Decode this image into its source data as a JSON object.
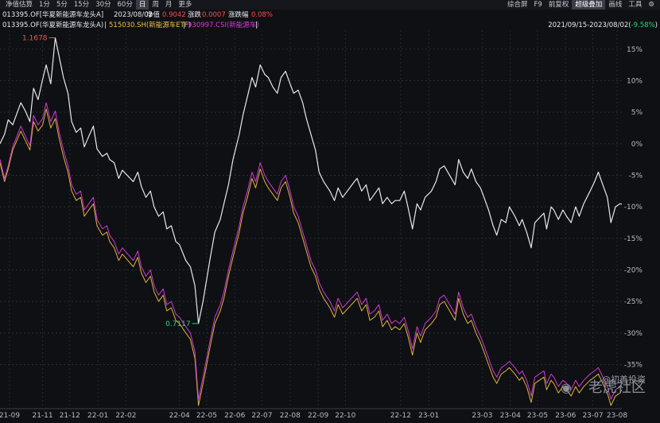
{
  "toolbar": {
    "tabs": [
      "净值估算",
      "1分",
      "5分",
      "15分",
      "30分",
      "60分",
      "日",
      "周",
      "月",
      "更多"
    ],
    "active_tab": "日",
    "right_items": [
      "综合屏",
      "F9",
      "前复权",
      "超级叠加",
      "画线",
      "工具"
    ],
    "active_right": "超级叠加",
    "settings_icon": "gear-icon"
  },
  "info": {
    "fund": "013395.OF[华夏新能源车龙头A]",
    "date": "2023/08/02",
    "nav_label": "净值",
    "nav_value": "0.9042",
    "chg_label": "涨跌",
    "chg_value": "0.0007",
    "pct_label": "涨跌幅",
    "pct_value": "0.08%"
  },
  "legend": {
    "s1": "013395.OF(华夏新能源车龙头A)",
    "sep1": "|",
    "s2": "515030.SH(新能源车ETF)",
    "sep2": "|",
    "s3": "930997.CSI(新能源车)",
    "sep3": "|",
    "range": "2021/09/15-2023/08/02(",
    "range_value": "-9.58%",
    "range_end": ")"
  },
  "colors": {
    "fund": "#e6e8ec",
    "etf": "#e0b43a",
    "index": "#d23ad2",
    "up": "#ff4d4f",
    "down": "#28d17c"
  },
  "watermark": {
    "top": "@初善投资",
    "bottom": "老虎社区"
  },
  "chart_data": {
    "type": "line",
    "x": [
      "21-09-15",
      "21-09-20",
      "21-09-24",
      "21-09-29",
      "21-10-08",
      "21-10-13",
      "21-10-18",
      "21-10-22",
      "21-10-27",
      "21-11-01",
      "21-11-05",
      "21-11-10",
      "21-11-15",
      "21-11-19",
      "21-11-24",
      "21-11-29",
      "21-12-03",
      "21-12-08",
      "21-12-13",
      "21-12-17",
      "21-12-22",
      "21-12-27",
      "21-12-31",
      "22-01-06",
      "22-01-11",
      "22-01-14",
      "22-01-19",
      "22-01-24",
      "22-01-28",
      "22-02-09",
      "22-02-14",
      "22-02-18",
      "22-02-23",
      "22-02-28",
      "22-03-04",
      "22-03-09",
      "22-03-14",
      "22-03-18",
      "22-03-23",
      "22-03-28",
      "22-04-01",
      "22-04-08",
      "22-04-13",
      "22-04-18",
      "22-04-22",
      "22-04-27",
      "22-05-05",
      "22-05-10",
      "22-05-16",
      "22-05-20",
      "22-05-25",
      "22-05-30",
      "22-06-06",
      "22-06-10",
      "22-06-15",
      "22-06-20",
      "22-06-24",
      "22-06-29",
      "22-07-04",
      "22-07-08",
      "22-07-13",
      "22-07-18",
      "22-07-22",
      "22-07-27",
      "22-08-01",
      "22-08-05",
      "22-08-10",
      "22-08-15",
      "22-08-19",
      "22-08-24",
      "22-08-29",
      "22-09-02",
      "22-09-07",
      "22-09-14",
      "22-09-19",
      "22-09-23",
      "22-09-28",
      "22-10-11",
      "22-10-14",
      "22-10-19",
      "22-10-24",
      "22-10-28",
      "22-11-02",
      "22-11-07",
      "22-11-11",
      "22-11-16",
      "22-11-21",
      "22-11-25",
      "22-11-30",
      "22-12-05",
      "22-12-09",
      "22-12-14",
      "22-12-19",
      "22-12-23",
      "22-12-28",
      "23-01-04",
      "23-01-09",
      "23-01-13",
      "23-01-18",
      "23-01-30",
      "23-02-03",
      "23-02-08",
      "23-02-13",
      "23-02-17",
      "23-02-22",
      "23-02-27",
      "23-03-03",
      "23-03-08",
      "23-03-13",
      "23-03-17",
      "23-03-22",
      "23-03-27",
      "23-03-31",
      "23-04-06",
      "23-04-11",
      "23-04-14",
      "23-04-19",
      "23-04-24",
      "23-04-28",
      "23-05-08",
      "23-05-11",
      "23-05-16",
      "23-05-19",
      "23-05-24",
      "23-05-29",
      "23-06-02",
      "23-06-07",
      "23-06-12",
      "23-06-16",
      "23-06-21",
      "23-06-28",
      "23-07-03",
      "23-07-07",
      "23-07-12",
      "23-07-17",
      "23-07-21",
      "23-07-26",
      "23-07-31",
      "23-08-02"
    ],
    "x_tick_labels": [
      "21-09",
      "21-11",
      "21-12",
      "22-01",
      "22-02",
      "22-04",
      "22-05",
      "22-06",
      "22-07",
      "22-08",
      "22-09",
      "22-10",
      "22-12",
      "23-01",
      "23-03",
      "23-04",
      "23-05",
      "23-06",
      "23-07",
      "23-08"
    ],
    "series": [
      {
        "name": "013395.OF(华夏新能源车龙头A)",
        "values": [
          0.0,
          1.5,
          3.8,
          3.0,
          6.5,
          5.2,
          3.5,
          8.8,
          7.0,
          10.2,
          12.5,
          9.5,
          16.8,
          14.0,
          10.5,
          8.0,
          3.5,
          1.8,
          2.5,
          -0.5,
          1.2,
          2.8,
          -0.8,
          -2.0,
          -1.5,
          -2.5,
          -3.0,
          -5.5,
          -4.2,
          -6.0,
          -4.5,
          -6.8,
          -8.5,
          -7.5,
          -10.0,
          -11.5,
          -10.8,
          -13.5,
          -13.0,
          -15.5,
          -16.0,
          -18.5,
          -19.5,
          -22.5,
          -28.5,
          -25.0,
          -18.0,
          -14.0,
          -12.0,
          -9.5,
          -6.5,
          -2.5,
          1.5,
          4.5,
          7.5,
          10.5,
          9.0,
          12.5,
          11.0,
          10.5,
          9.0,
          8.0,
          10.5,
          11.5,
          9.5,
          8.0,
          8.5,
          6.5,
          4.0,
          1.5,
          -1.0,
          -4.5,
          -6.0,
          -7.5,
          -9.0,
          -7.0,
          -8.5,
          -6.0,
          -5.5,
          -7.5,
          -6.5,
          -9.0,
          -8.0,
          -7.0,
          -9.5,
          -8.5,
          -9.5,
          -9.0,
          -9.0,
          -7.5,
          -10.0,
          -13.5,
          -9.5,
          -10.5,
          -8.5,
          -7.5,
          -6.0,
          -4.0,
          -3.5,
          -6.5,
          -2.5,
          -4.5,
          -5.5,
          -4.0,
          -6.0,
          -7.0,
          -8.5,
          -10.5,
          -13.0,
          -14.5,
          -12.0,
          -12.5,
          -10.0,
          -11.5,
          -13.0,
          -12.0,
          -14.0,
          -16.5,
          -12.5,
          -11.0,
          -13.5,
          -10.0,
          -10.5,
          -12.0,
          -10.5,
          -11.5,
          -12.5,
          -10.0,
          -11.5,
          -9.5,
          -7.5,
          -6.0,
          -4.5,
          -6.5,
          -8.5,
          -12.5,
          -10.0,
          -9.5,
          -9.58
        ]
      },
      {
        "name": "515030.SH(新能源车ETF)",
        "values": [
          -3.0,
          -6.0,
          -4.0,
          -1.0,
          2.0,
          0.5,
          -1.0,
          3.5,
          2.0,
          3.0,
          5.5,
          2.5,
          4.0,
          1.0,
          -2.0,
          -4.5,
          -7.5,
          -9.0,
          -8.5,
          -11.5,
          -10.5,
          -9.5,
          -13.0,
          -14.5,
          -14.0,
          -15.5,
          -16.5,
          -18.5,
          -17.5,
          -19.5,
          -18.0,
          -20.5,
          -22.0,
          -21.0,
          -23.5,
          -25.0,
          -24.0,
          -26.5,
          -26.0,
          -28.0,
          -28.5,
          -30.0,
          -31.0,
          -34.0,
          -41.5,
          -38.0,
          -32.0,
          -28.5,
          -26.5,
          -24.5,
          -21.0,
          -18.0,
          -14.0,
          -11.0,
          -8.5,
          -5.5,
          -7.0,
          -4.0,
          -6.0,
          -7.0,
          -8.0,
          -9.0,
          -7.0,
          -6.0,
          -8.5,
          -11.0,
          -12.5,
          -15.0,
          -17.0,
          -19.5,
          -21.0,
          -23.0,
          -24.5,
          -26.0,
          -27.5,
          -25.5,
          -27.0,
          -25.0,
          -24.5,
          -26.5,
          -25.5,
          -28.0,
          -27.5,
          -26.5,
          -29.0,
          -28.0,
          -29.5,
          -29.0,
          -29.5,
          -28.5,
          -30.5,
          -33.5,
          -30.0,
          -31.5,
          -29.5,
          -28.5,
          -27.5,
          -25.5,
          -25.0,
          -28.0,
          -24.5,
          -27.0,
          -28.5,
          -28.0,
          -30.0,
          -31.5,
          -33.0,
          -35.0,
          -37.0,
          -38.0,
          -36.5,
          -36.0,
          -35.5,
          -36.5,
          -37.5,
          -37.0,
          -38.5,
          -41.0,
          -38.0,
          -37.0,
          -39.0,
          -37.5,
          -38.0,
          -39.5,
          -38.5,
          -39.0,
          -40.0,
          -38.5,
          -39.5,
          -38.5,
          -37.5,
          -37.0,
          -36.5,
          -38.0,
          -39.5,
          -41.5,
          -40.0,
          -39.5,
          -39.0
        ]
      },
      {
        "name": "930997.CSI(新能源车)",
        "values": [
          -2.5,
          -5.5,
          -3.5,
          -0.5,
          2.8,
          1.2,
          -0.3,
          4.5,
          3.0,
          4.0,
          6.5,
          3.5,
          5.2,
          2.0,
          -1.0,
          -3.5,
          -6.5,
          -8.0,
          -7.5,
          -10.5,
          -9.5,
          -8.5,
          -12.0,
          -13.5,
          -13.0,
          -14.5,
          -15.5,
          -17.5,
          -16.5,
          -18.5,
          -17.0,
          -19.5,
          -21.0,
          -20.0,
          -22.5,
          -24.0,
          -23.0,
          -25.5,
          -25.0,
          -27.0,
          -27.5,
          -29.0,
          -30.0,
          -33.0,
          -40.5,
          -37.0,
          -31.0,
          -27.5,
          -25.5,
          -23.5,
          -20.0,
          -17.0,
          -13.0,
          -10.0,
          -7.5,
          -4.5,
          -6.0,
          -3.0,
          -5.0,
          -6.0,
          -7.0,
          -8.0,
          -6.0,
          -5.0,
          -7.5,
          -10.0,
          -11.5,
          -14.0,
          -16.0,
          -18.5,
          -20.0,
          -22.0,
          -23.5,
          -25.0,
          -26.5,
          -24.5,
          -26.0,
          -24.0,
          -23.5,
          -25.5,
          -24.5,
          -27.0,
          -26.5,
          -25.5,
          -28.0,
          -27.0,
          -28.5,
          -28.0,
          -28.5,
          -27.5,
          -29.5,
          -32.5,
          -29.0,
          -30.5,
          -28.5,
          -27.5,
          -26.5,
          -24.5,
          -24.0,
          -27.0,
          -23.5,
          -26.0,
          -27.5,
          -27.0,
          -29.0,
          -30.5,
          -32.0,
          -34.0,
          -36.0,
          -37.0,
          -35.5,
          -35.0,
          -34.5,
          -35.5,
          -36.5,
          -36.0,
          -37.5,
          -40.0,
          -37.0,
          -36.0,
          -38.0,
          -36.5,
          -37.0,
          -38.5,
          -37.5,
          -38.0,
          -39.0,
          -37.5,
          -38.5,
          -37.5,
          -36.5,
          -36.0,
          -35.5,
          -37.0,
          -38.5,
          -40.5,
          -39.0,
          -38.5,
          -38.0
        ]
      }
    ],
    "y_ticks": [
      15,
      10,
      5,
      0,
      -5,
      -10,
      -15,
      -20,
      -25,
      -30,
      -35
    ],
    "y_tick_labels": [
      "15%",
      "10%",
      "5%",
      "0%",
      "-5%",
      "-10%",
      "-15%",
      "-20%",
      "-25%",
      "-30%",
      "-35%"
    ],
    "ylim": [
      -42,
      18
    ],
    "annotations": [
      {
        "text": "1.1678",
        "series": 0,
        "index": 12,
        "type": "high"
      },
      {
        "text": "0.7117",
        "series": 0,
        "index": 44,
        "type": "low"
      }
    ],
    "grid": true
  }
}
